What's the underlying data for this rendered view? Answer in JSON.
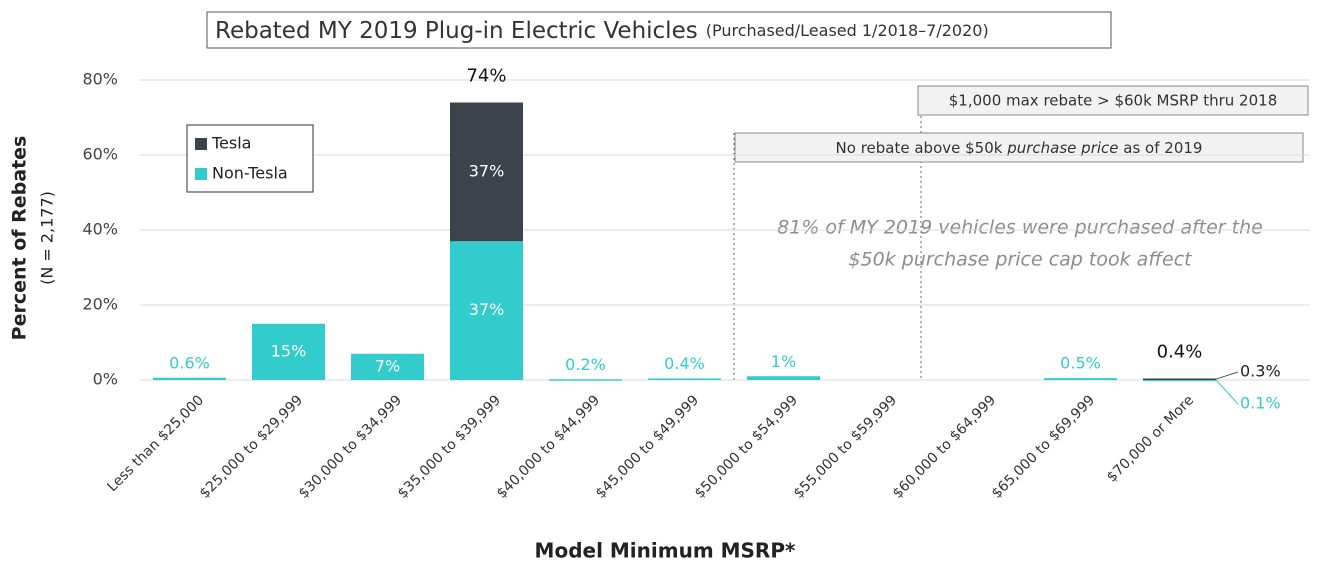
{
  "chart_data": {
    "type": "stacked_bar",
    "title": "Rebated MY 2019 Plug-in Electric Vehicles",
    "subtitle": "(Purchased/Leased 1/2018–7/2020)",
    "y_label": "Percent of Rebates",
    "y_sublabel": "(N = 2,177)",
    "x_label": "Model Minimum MSRP*",
    "categories": [
      "Less than $25,000",
      "$25,000 to $29,999",
      "$30,000 to $34,999",
      "$35,000 to $39,999",
      "$40,000 to $44,999",
      "$45,000 to $49,999",
      "$50,000 to $54,999",
      "$55,000 to $59,999",
      "$60,000 to $64,999",
      "$65,000 to $69,999",
      "$70,000 or More"
    ],
    "series": [
      {
        "name": "Non-Tesla",
        "color": "#33cccc",
        "values": [
          0.6,
          15,
          7,
          37,
          0.2,
          0.4,
          1,
          null,
          null,
          0.5,
          0.1
        ],
        "value_labels": [
          "0.6%",
          "15%",
          "7%",
          "37%",
          "0.2%",
          "0.4%",
          "1%",
          null,
          null,
          "0.5%",
          "0.1%"
        ]
      },
      {
        "name": "Tesla",
        "color": "#3d434b",
        "values": [
          null,
          null,
          null,
          37,
          null,
          null,
          null,
          null,
          null,
          null,
          0.3
        ],
        "value_labels": [
          null,
          null,
          null,
          "37%",
          null,
          null,
          null,
          null,
          null,
          null,
          "0.3%"
        ]
      }
    ],
    "totals": {
      "values": [
        null,
        null,
        null,
        74,
        null,
        null,
        null,
        null,
        null,
        null,
        0.4
      ],
      "value_labels": [
        null,
        null,
        null,
        "74%",
        null,
        null,
        null,
        null,
        null,
        null,
        "0.4%"
      ]
    },
    "ylim": [
      0,
      80
    ],
    "yticks": [
      {
        "value": 0,
        "label": "0%"
      },
      {
        "value": 20,
        "label": "20%"
      },
      {
        "value": 40,
        "label": "40%"
      },
      {
        "value": 60,
        "label": "60%"
      },
      {
        "value": 80,
        "label": "80%"
      }
    ],
    "grid": true,
    "legend": "upper left",
    "annotations": {
      "max_rebate": "$1,000 max rebate > $60k MSRP thru 2018",
      "no_rebate": [
        "No rebate above $50k ",
        "purchase price",
        " as of 2019"
      ],
      "note": [
        "81% of MY 2019 vehicles were purchased after the",
        "$50k purchase price cap took affect"
      ]
    }
  }
}
